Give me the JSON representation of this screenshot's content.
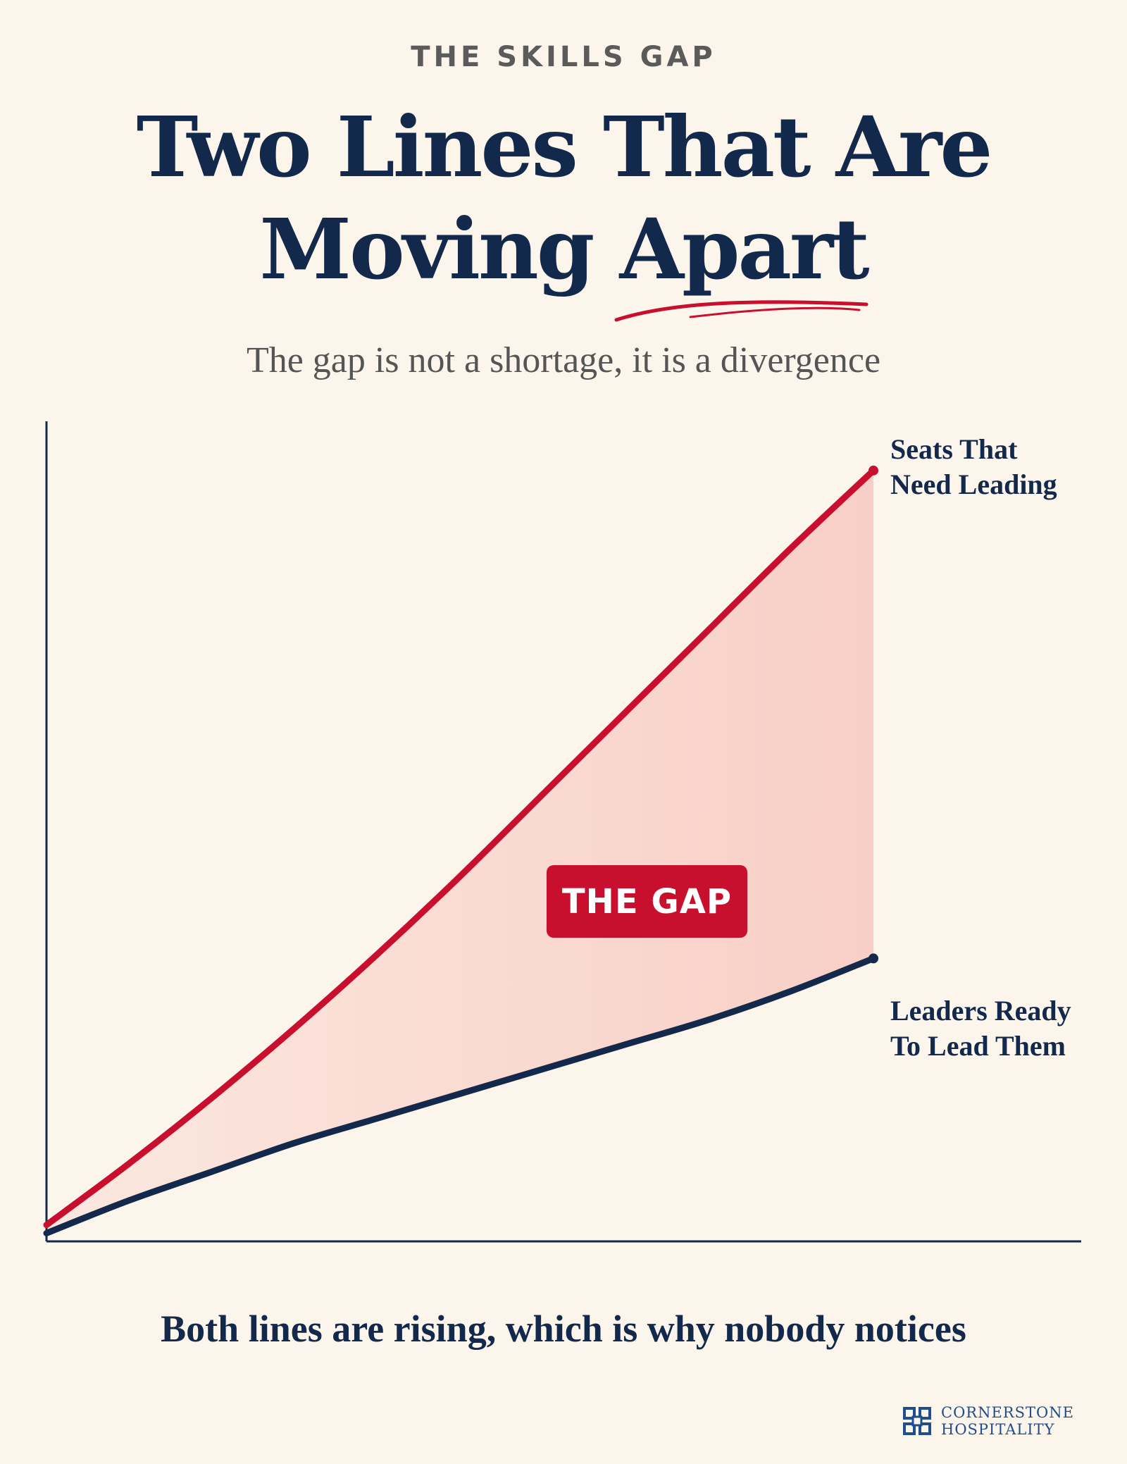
{
  "header": {
    "kicker": "THE SKILLS GAP",
    "title_line1": "Two Lines That Are",
    "title_line2": "Moving Apart",
    "subtitle": "The gap is not a shortage, it is a divergence"
  },
  "chart_data": {
    "type": "line",
    "title": "",
    "xlabel": "",
    "ylabel": "",
    "axis_ticks": "none",
    "grid": false,
    "legend": "direct labels at line ends (right)",
    "x": [
      0,
      10,
      20,
      30,
      40,
      50,
      60,
      70,
      80,
      90,
      100
    ],
    "series": [
      {
        "name_lines": [
          "Seats That",
          "Need Leading"
        ],
        "color": "#c8102e",
        "values": [
          2,
          9.5,
          17.5,
          26,
          35,
          44.5,
          54.5,
          64.5,
          74.5,
          84.5,
          94
        ]
      },
      {
        "name_lines": [
          "Leaders Ready",
          "To Lead Them"
        ],
        "color": "#13294b",
        "values": [
          1,
          5,
          8.5,
          12,
          15,
          18,
          21,
          24,
          27,
          30.5,
          34.5
        ]
      }
    ],
    "fill_between": {
      "label": "THE GAP",
      "color": "#f8cfc6"
    },
    "ylim": [
      0,
      100
    ],
    "xlim": [
      0,
      100
    ]
  },
  "caption": "Both lines are rising, which is why nobody notices",
  "brand": {
    "line1": "CORNERSTONE",
    "line2": "HOSPITALITY",
    "icon": "cornerstone-logo-icon"
  },
  "colors": {
    "background": "#fcf5ec",
    "navy": "#13294b",
    "red": "#c8102e",
    "gap_fill": "#f8cfc6"
  }
}
